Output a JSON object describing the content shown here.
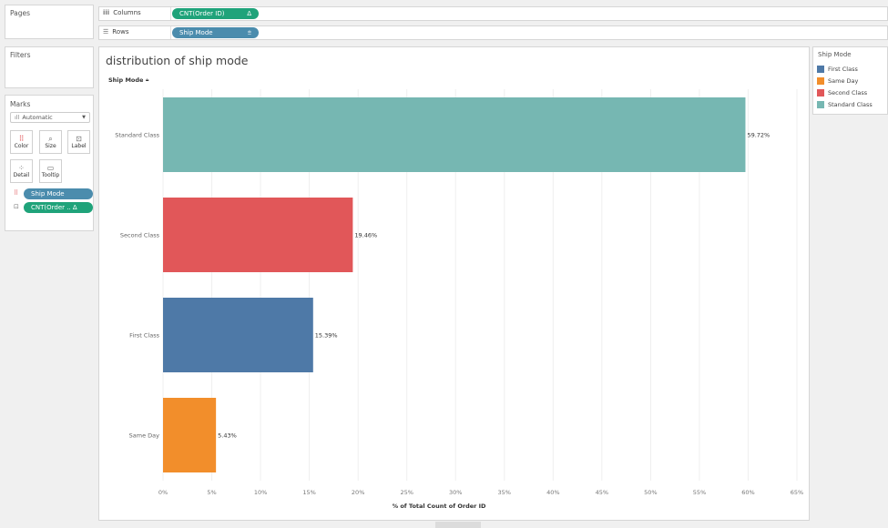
{
  "cards": {
    "pages": "Pages",
    "filters": "Filters",
    "marks": "Marks"
  },
  "shelves": {
    "columns": {
      "label": "Columns",
      "pill": "CNT(Order ID)",
      "pill_icon": "Δ"
    },
    "rows": {
      "label": "Rows",
      "pill": "Ship Mode",
      "pill_icon": "⩧"
    }
  },
  "marks": {
    "type": "Automatic",
    "buttons": [
      {
        "label": "Color",
        "icon": "color-icon"
      },
      {
        "label": "Size",
        "icon": "size-icon"
      },
      {
        "label": "Label",
        "icon": "label-icon"
      },
      {
        "label": "Detail",
        "icon": "detail-icon"
      },
      {
        "label": "Tooltip",
        "icon": "tooltip-icon"
      }
    ],
    "pills": [
      {
        "label": "Ship Mode",
        "type": "color"
      },
      {
        "label": "CNT(Order .. Δ",
        "type": "label"
      }
    ]
  },
  "legend": {
    "title": "Ship Mode",
    "items": [
      {
        "label": "First Class",
        "color": "#4e79a7"
      },
      {
        "label": "Same Day",
        "color": "#f28e2b"
      },
      {
        "label": "Second Class",
        "color": "#e15759"
      },
      {
        "label": "Standard Class",
        "color": "#76b7b2"
      }
    ]
  },
  "chart_data": {
    "type": "bar",
    "orientation": "horizontal",
    "title": "distribution of ship mode",
    "row_header": "Ship Mode",
    "xlabel": "% of Total Count of Order ID",
    "categories": [
      "Standard Class",
      "Second Class",
      "First Class",
      "Same Day"
    ],
    "values": [
      59.72,
      19.46,
      15.39,
      5.43
    ],
    "data_labels": [
      "59.72%",
      "19.46%",
      "15.39%",
      "5.43%"
    ],
    "colors": [
      "#76b7b2",
      "#e15759",
      "#4e79a7",
      "#f28e2b"
    ],
    "xlim": [
      0,
      65
    ],
    "xticks": [
      0,
      5,
      10,
      15,
      20,
      25,
      30,
      35,
      40,
      45,
      50,
      55,
      60,
      65
    ],
    "xtick_labels": [
      "0%",
      "5%",
      "10%",
      "15%",
      "20%",
      "25%",
      "30%",
      "35%",
      "40%",
      "45%",
      "50%",
      "55%",
      "60%",
      "65%"
    ],
    "grid": "vertical"
  }
}
